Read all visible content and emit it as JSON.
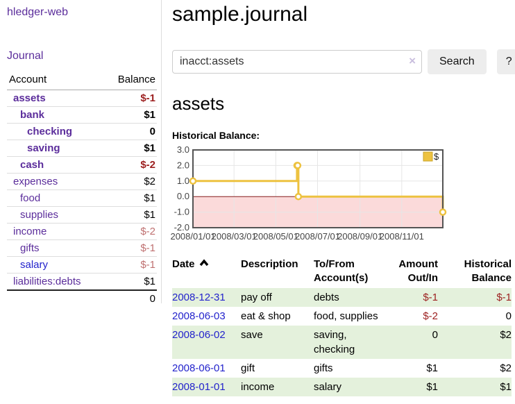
{
  "app": {
    "brand": "hledger-web"
  },
  "colors": {
    "purple": "#5b2d9b",
    "blue": "#2323cc",
    "neg": "#9c1f1f",
    "neg-soft": "#bf7070",
    "green-row": "#e4f1dc",
    "gold": "#edc240",
    "pink": "#fbdada",
    "zero-red": "#8b1c1c"
  },
  "sidebar": {
    "journal_link": "Journal",
    "accounts_table": {
      "headers": {
        "account": "Account",
        "balance": "Balance"
      },
      "rows": [
        {
          "name": "assets",
          "balance": "$-1"
        },
        {
          "name": "bank",
          "balance": "$1"
        },
        {
          "name": "checking",
          "balance": "0"
        },
        {
          "name": "saving",
          "balance": "$1"
        },
        {
          "name": "cash",
          "balance": "$-2"
        },
        {
          "name": "expenses",
          "balance": "$2"
        },
        {
          "name": "food",
          "balance": "$1"
        },
        {
          "name": "supplies",
          "balance": "$1"
        },
        {
          "name": "income",
          "balance": "$-2"
        },
        {
          "name": "gifts",
          "balance": "$-1"
        },
        {
          "name": "salary",
          "balance": "$-1"
        },
        {
          "name": "liabilities:debts",
          "balance": "$1"
        }
      ],
      "total": "0"
    }
  },
  "main": {
    "title": "sample.journal",
    "search": {
      "value": "inacct:assets",
      "clear_icon": "×",
      "button_label": "Search",
      "help_label": "?"
    },
    "account_heading": "assets",
    "chart_label": "Historical Balance:",
    "register": {
      "headers": {
        "date": "Date",
        "description": "Description",
        "account": "To/From Account(s)",
        "amount": "Amount Out/In",
        "balance": "Historical Balance"
      },
      "rows": [
        {
          "date": "2008-12-31",
          "description": "pay off",
          "account": "debts",
          "amount": "$-1",
          "balance": "$-1"
        },
        {
          "date": "2008-06-03",
          "description": "eat & shop",
          "account": "food, supplies",
          "amount": "$-2",
          "balance": "0"
        },
        {
          "date": "2008-06-02",
          "description": "save",
          "account": "saving, checking",
          "amount": "0",
          "balance": "$2"
        },
        {
          "date": "2008-06-01",
          "description": "gift",
          "account": "gifts",
          "amount": "$1",
          "balance": "$2"
        },
        {
          "date": "2008-01-01",
          "description": "income",
          "account": "salary",
          "amount": "$1",
          "balance": "$1"
        }
      ]
    }
  },
  "chart_data": {
    "type": "line",
    "step": true,
    "title": "Historical Balance:",
    "series": [
      {
        "name": "$",
        "color": "#edc240",
        "points": [
          [
            "2008-01-01",
            1
          ],
          [
            "2008-06-01",
            2
          ],
          [
            "2008-06-02",
            2
          ],
          [
            "2008-06-03",
            0
          ],
          [
            "2008-12-31",
            -1
          ]
        ]
      }
    ],
    "x_ticks": [
      "2008/01/01",
      "2008/03/01",
      "2008/05/01",
      "2008/07/01",
      "2008/09/01",
      "2008/11/01"
    ],
    "y_ticks": [
      "3.0",
      "2.0",
      "1.0",
      "0.0",
      "-1.0",
      "-2.0"
    ],
    "xlim": [
      "2008-01-01",
      "2008-12-31"
    ],
    "ylim": [
      -2,
      3
    ],
    "grid": true,
    "legend_position": "top-right",
    "negative_region_color": "#fbdada",
    "zero_line_color": "#8b1c1c"
  }
}
